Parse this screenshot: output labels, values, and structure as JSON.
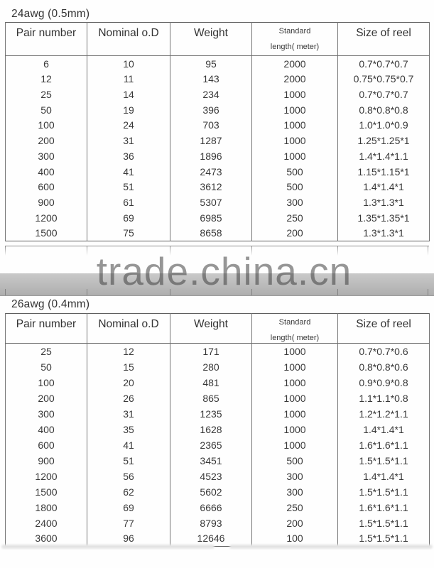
{
  "watermark": {
    "text": "trade.china.cn"
  },
  "colors": {
    "outer_border": "#5d5d5d",
    "inner_border": "#767676",
    "text": "#383838",
    "watermark_band": "#b8b8b8",
    "watermark_text_gray": "#8a8a8a"
  },
  "tables": [
    {
      "title": "24awg (0.5mm)",
      "columns": [
        [
          "Pair number"
        ],
        [
          "Nominal o.D"
        ],
        [
          "Weight"
        ],
        [
          "Standard",
          "length( meter)"
        ],
        [
          "Size of reel"
        ]
      ],
      "rows": [
        [
          "6",
          "10",
          "95",
          "2000",
          "0.7*0.7*0.7"
        ],
        [
          "12",
          "11",
          "143",
          "2000",
          "0.75*0.75*0.7"
        ],
        [
          "25",
          "14",
          "234",
          "1000",
          "0.7*0.7*0.7"
        ],
        [
          "50",
          "19",
          "396",
          "1000",
          "0.8*0.8*0.8"
        ],
        [
          "100",
          "24",
          "703",
          "1000",
          "1.0*1.0*0.9"
        ],
        [
          "200",
          "31",
          "1287",
          "1000",
          "1.25*1.25*1"
        ],
        [
          "300",
          "36",
          "1896",
          "1000",
          "1.4*1.4*1.1"
        ],
        [
          "400",
          "41",
          "2473",
          "500",
          "1.15*1.15*1"
        ],
        [
          "600",
          "51",
          "3612",
          "500",
          "1.4*1.4*1"
        ],
        [
          "900",
          "61",
          "5307",
          "300",
          "1.3*1.3*1"
        ],
        [
          "1200",
          "69",
          "6985",
          "250",
          "1.35*1.35*1"
        ],
        [
          "1500",
          "75",
          "8658",
          "200",
          "1.3*1.3*1"
        ]
      ]
    },
    {
      "title": "26awg (0.4mm)",
      "columns": [
        [
          "Pair number"
        ],
        [
          "Nominal o.D"
        ],
        [
          "Weight"
        ],
        [
          "Standard",
          "length( meter)"
        ],
        [
          "Size of reel"
        ]
      ],
      "rows": [
        [
          "25",
          "12",
          "171",
          "1000",
          "0.7*0.7*0.6"
        ],
        [
          "50",
          "15",
          "280",
          "1000",
          "0.8*0.8*0.6"
        ],
        [
          "100",
          "20",
          "481",
          "1000",
          "0.9*0.9*0.8"
        ],
        [
          "200",
          "26",
          "865",
          "1000",
          "1.1*1.1*0.8"
        ],
        [
          "300",
          "31",
          "1235",
          "1000",
          "1.2*1.2*1.1"
        ],
        [
          "400",
          "35",
          "1628",
          "1000",
          "1.4*1.4*1"
        ],
        [
          "600",
          "41",
          "2365",
          "1000",
          "1.6*1.6*1.1"
        ],
        [
          "900",
          "51",
          "3451",
          "500",
          "1.5*1.5*1.1"
        ],
        [
          "1200",
          "56",
          "4523",
          "300",
          "1.4*1.4*1"
        ],
        [
          "1500",
          "62",
          "5602",
          "300",
          "1.5*1.5*1.1"
        ],
        [
          "1800",
          "69",
          "6666",
          "250",
          "1.6*1.6*1.1"
        ],
        [
          "2400",
          "77",
          "8793",
          "200",
          "1.5*1.5*1.1"
        ],
        [
          "3600",
          "96",
          "12646",
          "100",
          "1.5*1.5*1.1"
        ]
      ]
    }
  ]
}
